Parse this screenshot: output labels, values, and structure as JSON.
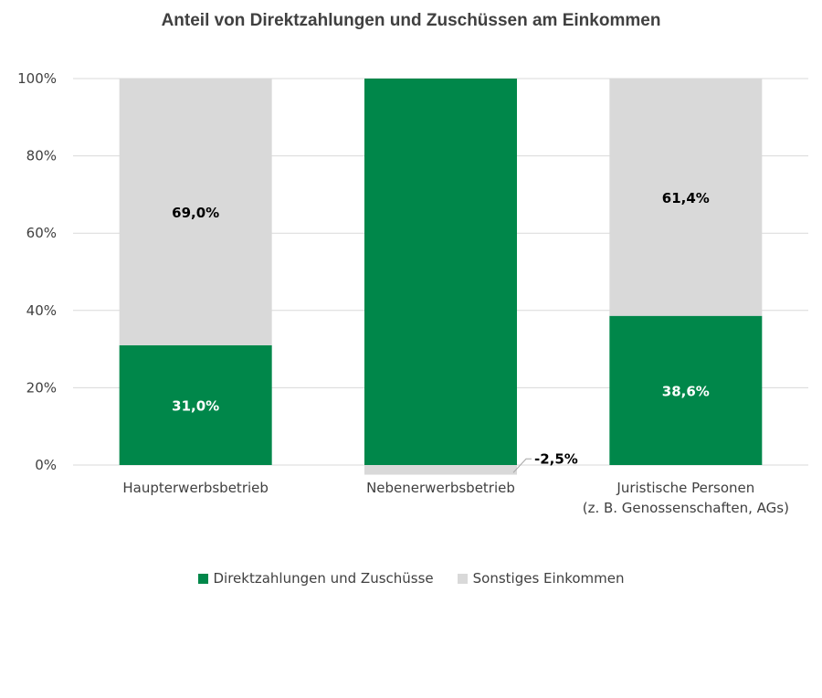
{
  "chart_data": {
    "type": "bar",
    "stacked": true,
    "percent_stacked": true,
    "title": "Anteil von Direktzahlungen und Zuschüssen am Einkommen",
    "categories": [
      [
        "Haupterwerbsbetrieb"
      ],
      [
        "Nebenerwerbsbetrieb"
      ],
      [
        "Juristische Personen",
        "(z. B. Genossenschaften, AGs)"
      ]
    ],
    "series": [
      {
        "name": "Direktzahlungen und Zuschüsse",
        "color": "#00874A",
        "values": [
          31.0,
          102.5,
          38.6
        ],
        "labels": [
          "31,0%",
          "",
          "38,6%"
        ]
      },
      {
        "name": "Sonstiges Einkommen",
        "color": "#D9D9D9",
        "values": [
          69.0,
          -2.5,
          61.4
        ],
        "labels": [
          "69,0%",
          "-2,5%",
          "61,4%"
        ]
      }
    ],
    "yticks": [
      "0%",
      "20%",
      "40%",
      "60%",
      "80%",
      "100%"
    ],
    "ylim": [
      0,
      100
    ],
    "grid": true,
    "legend": "bottom"
  }
}
